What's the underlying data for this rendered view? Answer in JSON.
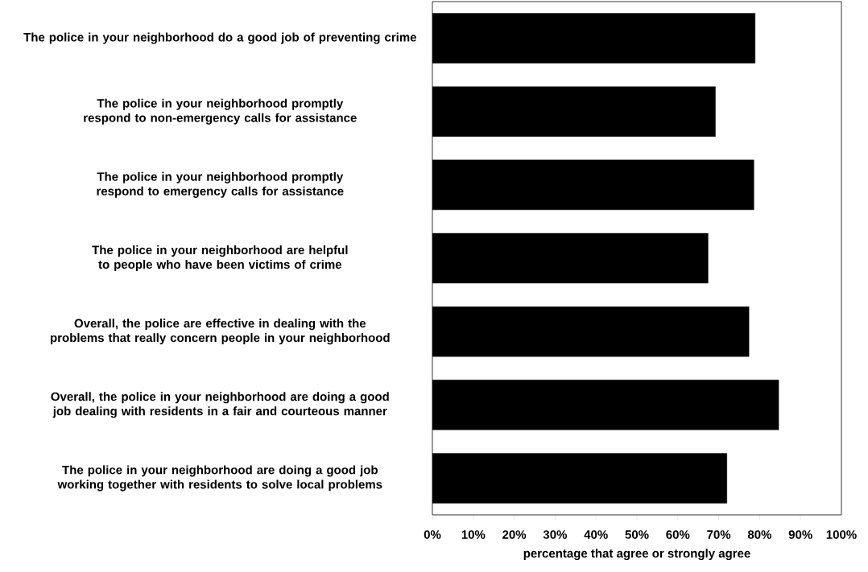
{
  "chart_data": {
    "type": "bar",
    "orientation": "horizontal",
    "categories": [
      "The police in your neighborhood do a good job of preventing crime",
      "The police in your neighborhood promptly respond to non-emergency calls for assistance",
      "The police in your neighborhood promptly respond to emergency calls for assistance",
      "The police in your neighborhood are helpful to people who have been victims of crime",
      "Overall, the police are effective in dealing with the problems that really concern people in your neighborhood",
      "Overall, the police in your neighborhood are doing a good job dealing with residents in a fair and courteous manner",
      "The police in your neighborhood are doing a good job working together with residents to solve local problems"
    ],
    "values": [
      78.9,
      69.2,
      78.6,
      67.4,
      77.4,
      84.7,
      72.0
    ],
    "color": "#000000",
    "xlim": [
      0,
      100
    ],
    "xticks": [
      {
        "value": 0,
        "label": "0%"
      },
      {
        "value": 10,
        "label": "10%"
      },
      {
        "value": 20,
        "label": "20%"
      },
      {
        "value": 30,
        "label": "30%"
      },
      {
        "value": 40,
        "label": "40%"
      },
      {
        "value": 50,
        "label": "50%"
      },
      {
        "value": 60,
        "label": "60%"
      },
      {
        "value": 70,
        "label": "70%"
      },
      {
        "value": 80,
        "label": "80%"
      },
      {
        "value": 90,
        "label": "90%"
      },
      {
        "value": 100,
        "label": "100%"
      }
    ],
    "xlabel": "percentage that agree or strongly agree"
  }
}
